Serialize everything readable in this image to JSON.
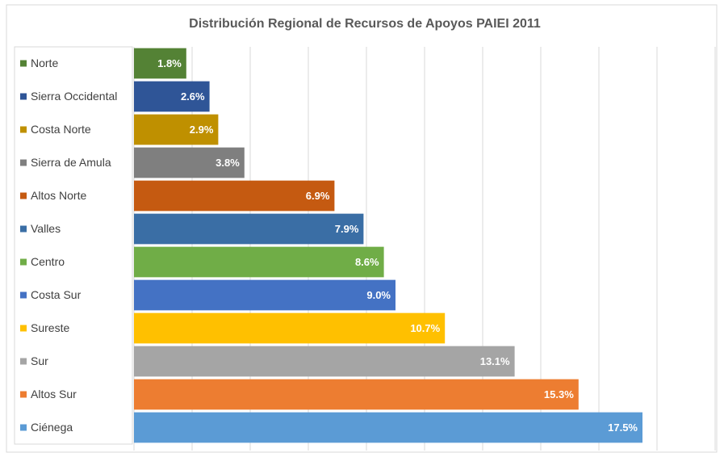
{
  "chart_data": {
    "type": "bar",
    "orientation": "horizontal",
    "title": "Distribución Regional de Recursos de Apoyos PAIEI 2011",
    "categories": [
      "Norte",
      "Sierra Occidental",
      "Costa Norte",
      "Sierra de Amula",
      "Altos Norte",
      "Valles",
      "Centro",
      "Costa Sur",
      "Sureste",
      "Sur",
      "Altos Sur",
      "Ciénega"
    ],
    "values": [
      1.8,
      2.6,
      2.9,
      3.8,
      6.9,
      7.9,
      8.6,
      9.0,
      10.7,
      13.1,
      15.3,
      17.5
    ],
    "value_labels": [
      "1.8%",
      "2.6%",
      "2.9%",
      "3.8%",
      "6.9%",
      "7.9%",
      "8.6%",
      "9.0%",
      "10.7%",
      "13.1%",
      "15.3%",
      "17.5%"
    ],
    "colors": [
      "#548235",
      "#2f5597",
      "#bf9000",
      "#7f7f7f",
      "#c55a11",
      "#3a6ea5",
      "#70ad47",
      "#4472c4",
      "#ffc000",
      "#a5a5a5",
      "#ed7d31",
      "#5b9bd5"
    ],
    "xlim": [
      0,
      20
    ],
    "xticks": [
      0,
      2,
      4,
      6,
      8,
      10,
      12,
      14,
      16,
      18,
      20
    ],
    "grid": true
  }
}
